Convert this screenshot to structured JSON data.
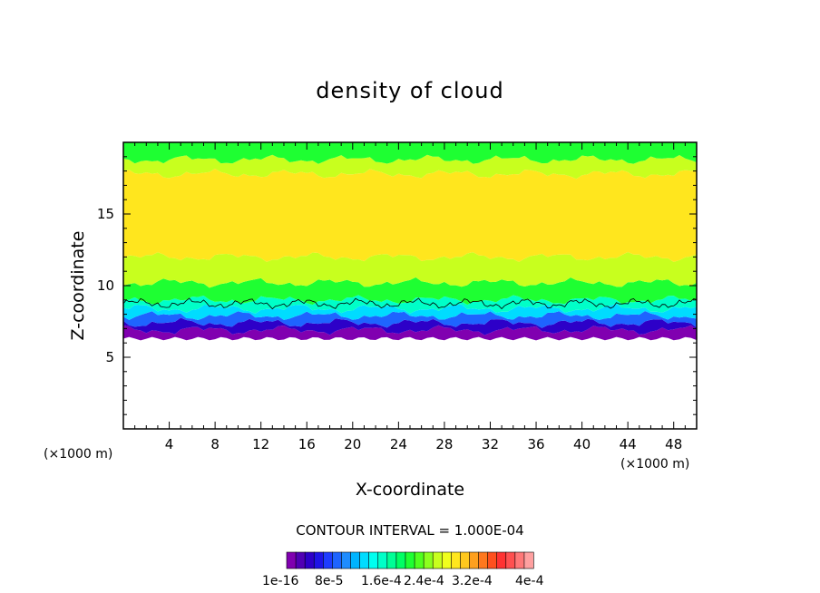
{
  "chart_data": {
    "type": "heatmap",
    "title": "density of cloud",
    "xlabel": "X-coordinate",
    "ylabel": "Z-coordinate",
    "x_unit": "(×1000 m)",
    "y_unit": "(×1000 m)",
    "xlim": [
      0,
      50
    ],
    "ylim": [
      0,
      20
    ],
    "x_ticks": [
      4,
      8,
      12,
      16,
      20,
      24,
      28,
      32,
      36,
      40,
      44,
      48
    ],
    "y_ticks": [
      5,
      10,
      15
    ],
    "cloud_base_km": 6.5,
    "cloud_top_km": 20,
    "bands": [
      {
        "z_bottom": 6.3,
        "z_top": 6.9,
        "value": 1e-16
      },
      {
        "z_bottom": 6.9,
        "z_top": 7.4,
        "value": 4e-05
      },
      {
        "z_bottom": 7.4,
        "z_top": 7.9,
        "value": 8e-05
      },
      {
        "z_bottom": 7.9,
        "z_top": 8.4,
        "value": 0.00012
      },
      {
        "z_bottom": 8.4,
        "z_top": 9.0,
        "value": 0.00016
      },
      {
        "z_bottom": 9.0,
        "z_top": 10.2,
        "value": 0.0002
      },
      {
        "z_bottom": 10.2,
        "z_top": 12.0,
        "value": 0.00024
      },
      {
        "z_bottom": 12.0,
        "z_top": 17.8,
        "value": 0.00028
      },
      {
        "z_bottom": 17.8,
        "z_top": 18.8,
        "value": 0.00024
      },
      {
        "z_bottom": 18.8,
        "z_top": 20.0,
        "value": 0.0002
      }
    ],
    "contour_interval_text": "CONTOUR INTERVAL = 1.000E-04",
    "colorbar": {
      "labels": [
        "1e-16",
        "8e-5",
        "1.6e-4",
        "2.4e-4",
        "3.2e-4",
        "4e-4"
      ],
      "colors": [
        "#8000b0",
        "#5000b4",
        "#2d00c8",
        "#1e14e6",
        "#1e3cff",
        "#1e64ff",
        "#1e8cff",
        "#00b4ff",
        "#00dcff",
        "#00fff0",
        "#00ffc8",
        "#00ff96",
        "#00ff64",
        "#1eff32",
        "#50ff1e",
        "#8cff1e",
        "#c8ff1e",
        "#f0ff1e",
        "#ffe61e",
        "#ffc81e",
        "#ffa01e",
        "#ff781e",
        "#ff501e",
        "#ff3232",
        "#ff5050",
        "#ff7878",
        "#ffa0a0"
      ]
    }
  }
}
